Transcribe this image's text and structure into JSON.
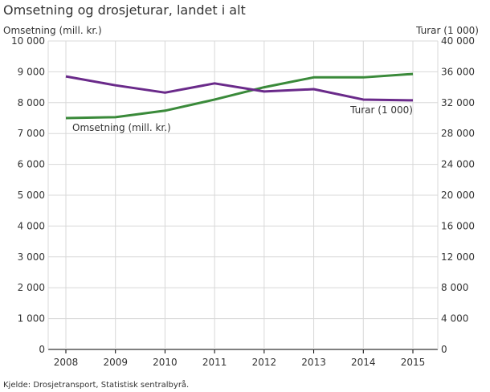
{
  "chart_data": {
    "type": "line",
    "title": "Omsetning og drosjeturar, landet i alt",
    "ylabel_left": "Omsetning (mill. kr.)",
    "ylabel_right": "Turar (1 000)",
    "source": "Kjelde: Drosjetransport, Statistisk sentralbyrå.",
    "categories": [
      "2008",
      "2009",
      "2010",
      "2011",
      "2012",
      "2013",
      "2014",
      "2015"
    ],
    "ylim_left": [
      0,
      10000
    ],
    "ylim_right": [
      0,
      40000
    ],
    "left_ticks": [
      0,
      1000,
      2000,
      3000,
      4000,
      5000,
      6000,
      7000,
      8000,
      9000,
      10000
    ],
    "left_tick_labels": [
      "0",
      "1 000",
      "2 000",
      "3 000",
      "4 000",
      "5 000",
      "6 000",
      "7 000",
      "8 000",
      "9 000",
      "10 000"
    ],
    "right_ticks": [
      0,
      4000,
      8000,
      12000,
      16000,
      20000,
      24000,
      28000,
      32000,
      36000,
      40000
    ],
    "right_tick_labels": [
      "0",
      "4 000",
      "8 000",
      "12 000",
      "16 000",
      "20 000",
      "24 000",
      "28 000",
      "32 000",
      "36 000",
      "40 000"
    ],
    "grid": true,
    "series": [
      {
        "name": "Omsetning (mill. kr.)",
        "axis": "left",
        "color": "#3a8a3a",
        "values": [
          7500,
          7530,
          7740,
          8100,
          8500,
          8820,
          8820,
          8930
        ]
      },
      {
        "name": "Turar (1 000)",
        "axis": "right",
        "color": "#6a2a8a",
        "values": [
          35400,
          34250,
          33300,
          34500,
          33450,
          33750,
          32400,
          32300
        ]
      }
    ]
  }
}
